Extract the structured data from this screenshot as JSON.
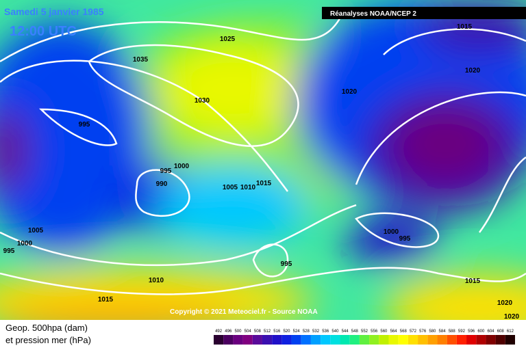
{
  "header": {
    "date": "Samedi 5 janvier 1985",
    "time": "12:00 UTC",
    "source": "Réanalyses NOAA/NCEP 2"
  },
  "isobar_labels": [
    1025,
    1035,
    1030,
    1020,
    1015,
    1020,
    995,
    1000,
    995,
    990,
    1005,
    1010,
    1015,
    1005,
    1000,
    995,
    1000,
    995,
    995,
    1010,
    1015,
    1015,
    1020,
    1020
  ],
  "copyright": "Copyright © 2021 Meteociel.fr - Source NOAA",
  "legend": {
    "line1": "Geop. 500hpa (dam)",
    "line2": "et pression mer (hPa)",
    "scale": [
      492,
      496,
      500,
      504,
      508,
      512,
      516,
      520,
      524,
      528,
      532,
      536,
      540,
      544,
      548,
      552,
      556,
      560,
      564,
      568,
      572,
      576,
      580,
      584,
      588,
      592,
      596,
      600,
      604,
      608,
      612
    ],
    "colors": [
      "#2a0030",
      "#4b0060",
      "#6a007f",
      "#800080",
      "#5a0a9a",
      "#3a0fb0",
      "#2010c8",
      "#1020e0",
      "#0040f0",
      "#0070ff",
      "#00a0ff",
      "#00c8ff",
      "#00e0e0",
      "#00e8b0",
      "#20f080",
      "#60f040",
      "#90f020",
      "#c0f000",
      "#e8f800",
      "#ffff00",
      "#ffe000",
      "#ffc000",
      "#ffa000",
      "#ff8000",
      "#ff5000",
      "#ff2000",
      "#e00000",
      "#b00000",
      "#800000",
      "#500000",
      "#200000"
    ]
  }
}
